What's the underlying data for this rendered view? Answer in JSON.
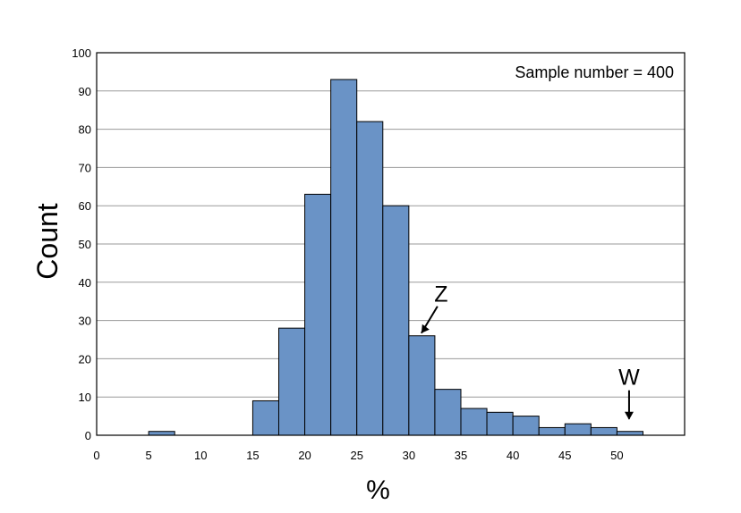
{
  "chart_data": {
    "type": "bar",
    "xlabel": "%",
    "ylabel": "Count",
    "ylim": [
      0,
      100
    ],
    "yticks": [
      0,
      10,
      20,
      30,
      40,
      50,
      60,
      70,
      80,
      90,
      100
    ],
    "xticks": [
      0,
      5,
      10,
      15,
      20,
      25,
      30,
      35,
      40,
      45,
      50
    ],
    "bin_width": 2.5,
    "bins": [
      {
        "x0": 5,
        "x1": 7.5,
        "count": 1
      },
      {
        "x0": 15,
        "x1": 17.5,
        "count": 9
      },
      {
        "x0": 17.5,
        "x1": 20,
        "count": 28
      },
      {
        "x0": 20,
        "x1": 22.5,
        "count": 63
      },
      {
        "x0": 22.5,
        "x1": 25,
        "count": 93
      },
      {
        "x0": 25,
        "x1": 27.5,
        "count": 82
      },
      {
        "x0": 27.5,
        "x1": 30,
        "count": 60
      },
      {
        "x0": 30,
        "x1": 32.5,
        "count": 26
      },
      {
        "x0": 32.5,
        "x1": 35,
        "count": 12
      },
      {
        "x0": 35,
        "x1": 37.5,
        "count": 7
      },
      {
        "x0": 37.5,
        "x1": 40,
        "count": 6
      },
      {
        "x0": 40,
        "x1": 42.5,
        "count": 5
      },
      {
        "x0": 42.5,
        "x1": 45,
        "count": 2
      },
      {
        "x0": 45,
        "x1": 47.5,
        "count": 3
      },
      {
        "x0": 47.5,
        "x1": 50,
        "count": 2
      },
      {
        "x0": 50,
        "x1": 52.5,
        "count": 1
      }
    ],
    "annotations": [
      {
        "label": "Z",
        "points_to_bin": 7
      },
      {
        "label": "W",
        "points_to_bin": 15
      }
    ],
    "sample_text": "Sample number = 400",
    "grid": "horizontal",
    "bar_color": "#6a93c6",
    "bar_edge_color": "#000000"
  }
}
